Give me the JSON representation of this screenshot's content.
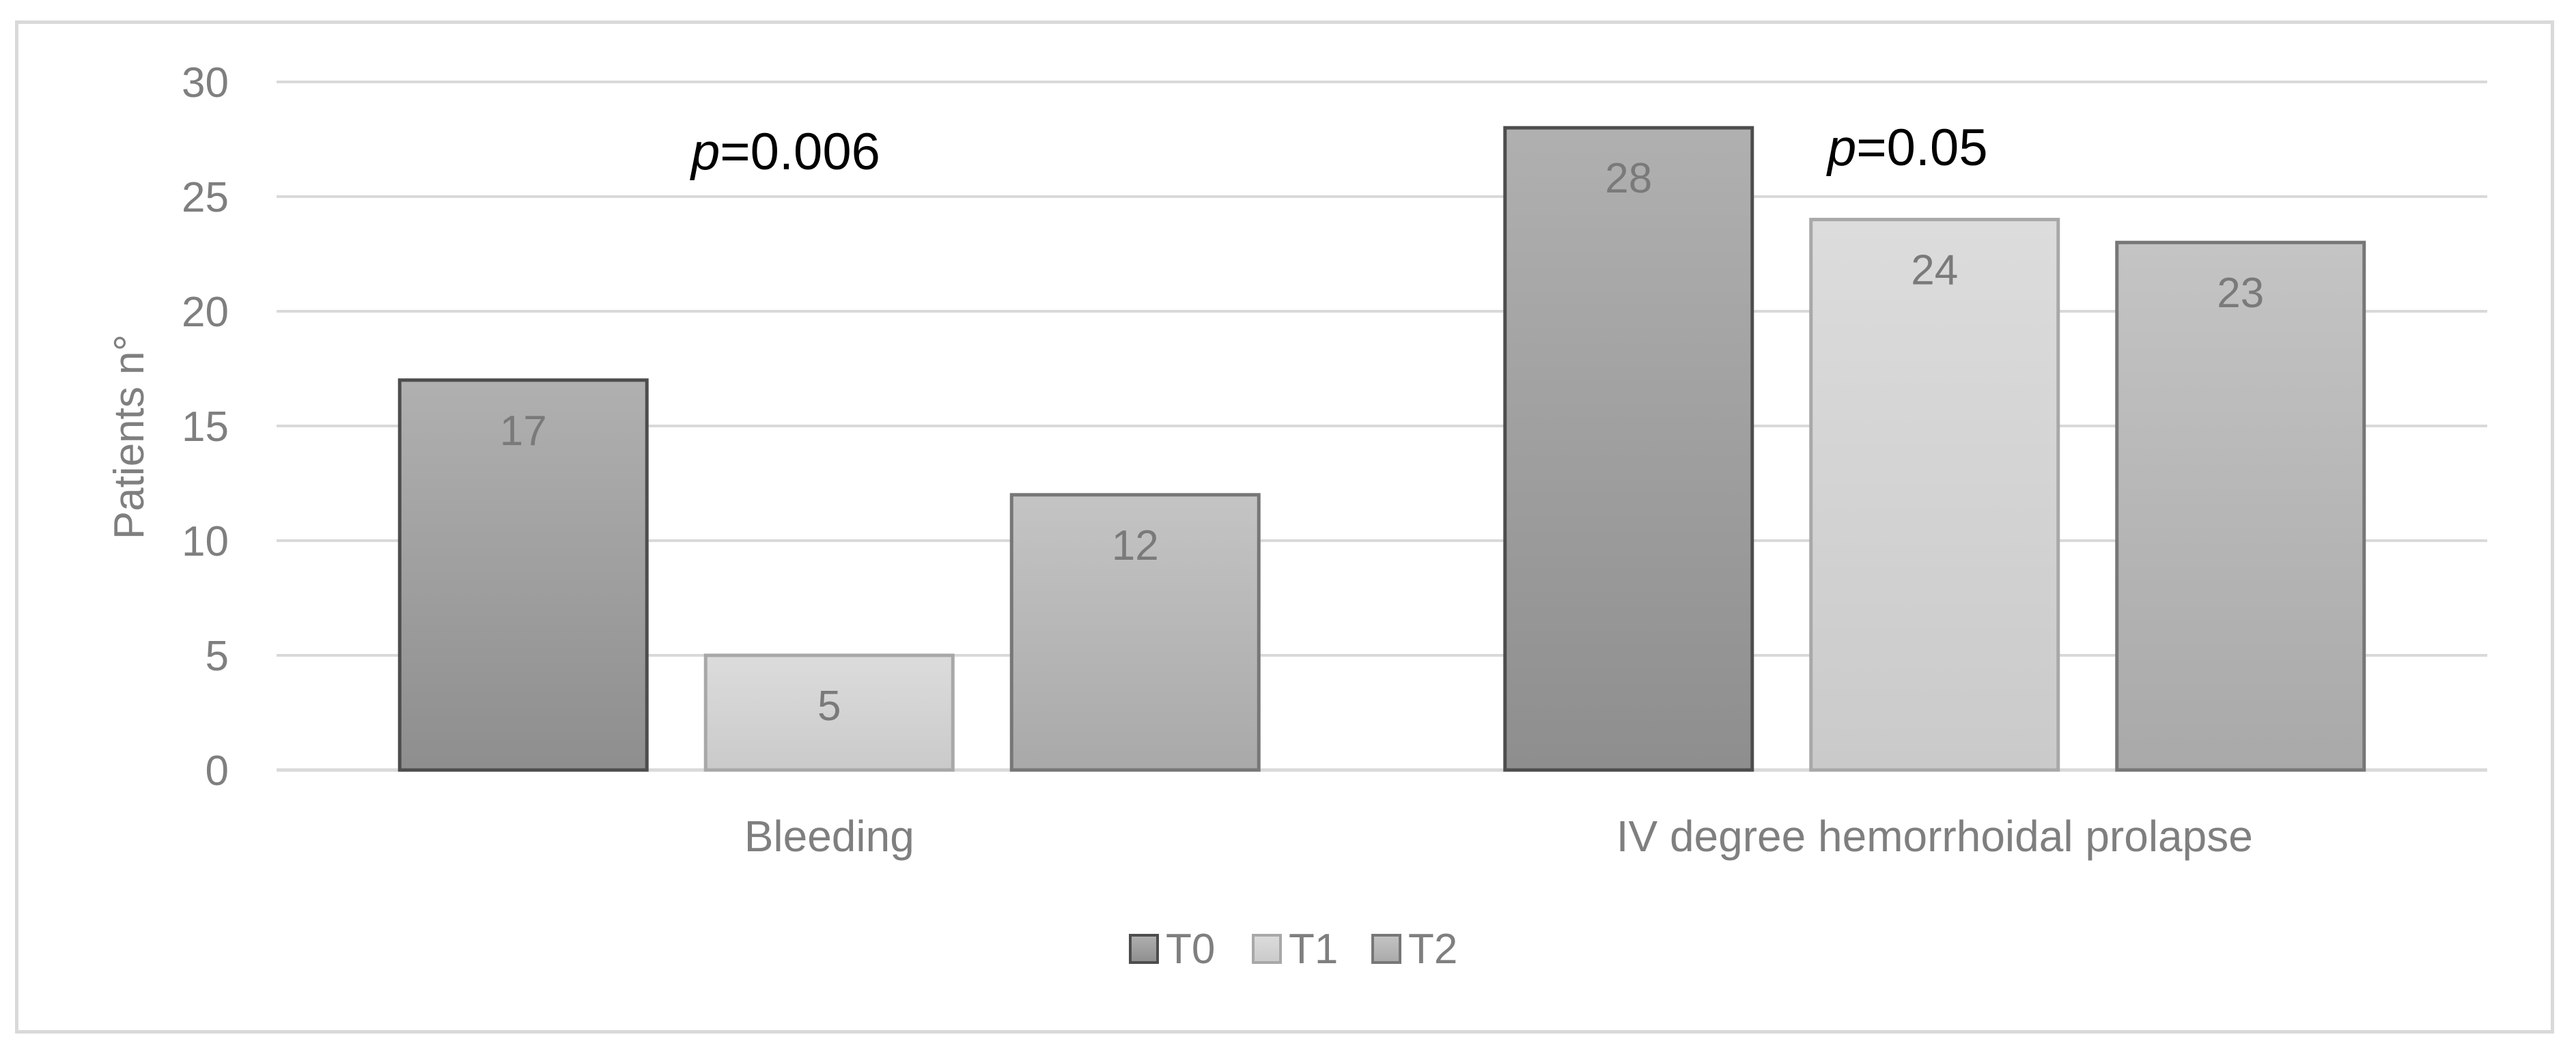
{
  "chart_data": {
    "type": "bar",
    "categories": [
      "Bleeding",
      "IV degree hemorrhoidal prolapse"
    ],
    "series": [
      {
        "name": "T0",
        "values": [
          17,
          28
        ],
        "color_top": "#b0b0b0",
        "color_bottom": "#8e8e8e",
        "stroke": "#4d4d4d"
      },
      {
        "name": "T1",
        "values": [
          5,
          24
        ],
        "color_top": "#dcdcdc",
        "color_bottom": "#cacaca",
        "stroke": "#a8a8a8"
      },
      {
        "name": "T2",
        "values": [
          12,
          23
        ],
        "color_top": "#c4c4c4",
        "color_bottom": "#a9a9a9",
        "stroke": "#777777"
      }
    ],
    "ylabel": "Patients n°",
    "xlabel": "",
    "ylim": [
      0,
      30
    ],
    "yticks": [
      0,
      5,
      10,
      15,
      20,
      25,
      30
    ],
    "grid": true,
    "legend": "bottom",
    "data_labels": true,
    "annotations": [
      {
        "prefix": "p",
        "text": "=0.006",
        "category": "Bleeding"
      },
      {
        "prefix": "p",
        "text": "=0.05",
        "category": "IV degree hemorrhoidal prolapse"
      }
    ]
  }
}
